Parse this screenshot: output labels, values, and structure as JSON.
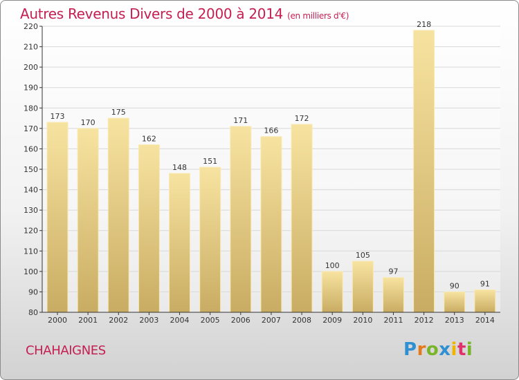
{
  "title": "Autres Revenus Divers de 2000 à 2014",
  "unit": "(en milliers d'€)",
  "commune": "CHAHAIGNES",
  "logo_text": "Proxiti",
  "colors": {
    "title": "#c41e52",
    "bar_light": "#f7e3a0",
    "bar_dark": "#c9ac63",
    "grid": "#d8d8d8"
  },
  "chart_data": {
    "type": "bar",
    "title": "Autres Revenus Divers de 2000 à 2014",
    "categories": [
      "2000",
      "2001",
      "2002",
      "2003",
      "2004",
      "2005",
      "2006",
      "2007",
      "2008",
      "2009",
      "2010",
      "2011",
      "2012",
      "2013",
      "2014"
    ],
    "values": [
      173,
      170,
      175,
      162,
      148,
      151,
      171,
      166,
      172,
      100,
      105,
      97,
      218,
      90,
      91
    ],
    "ylim": [
      80,
      220
    ],
    "yticks": [
      80,
      90,
      100,
      110,
      120,
      130,
      140,
      150,
      160,
      170,
      180,
      190,
      200,
      210,
      220
    ],
    "grid": true
  }
}
